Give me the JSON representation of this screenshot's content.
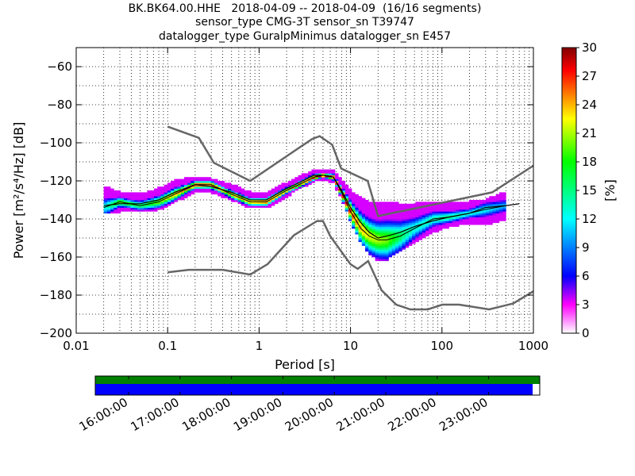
{
  "title": {
    "line1": "BK.BK64.00.HHE   2018-04-09 -- 2018-04-09  (16/16 segments)",
    "line2": "sensor_type CMG-3T sensor_sn T39747",
    "line3": "datalogger_type GuralpMinimus datalogger_sn E457"
  },
  "chart_data": [
    {
      "type": "heatmap",
      "xlabel": "Period [s]",
      "ylabel": "Power [m²/s⁴/Hz] [dB]",
      "x_scale": "log",
      "xlim": [
        0.01,
        1000
      ],
      "ylim": [
        -200,
        -50
      ],
      "grid": true,
      "x_ticks": [
        0.01,
        0.1,
        1,
        10,
        100,
        1000
      ],
      "x_tick_labels": [
        "0.01",
        "0.1",
        "1",
        "10",
        "100",
        "1000"
      ],
      "y_ticks": [
        -200,
        -180,
        -160,
        -140,
        -120,
        -100,
        -80,
        -60
      ],
      "y_tick_labels": [
        "−200",
        "−180",
        "−160",
        "−140",
        "−120",
        "−100",
        "−80",
        "−60"
      ],
      "colorbar": {
        "label": "[%]",
        "range": [
          0,
          30
        ],
        "ticks": [
          0,
          3,
          6,
          9,
          12,
          15,
          18,
          21,
          24,
          27,
          30
        ],
        "tick_labels": [
          "0",
          "3",
          "6",
          "9",
          "12",
          "15",
          "18",
          "21",
          "24",
          "27",
          "30"
        ],
        "colors": [
          "#ffffff",
          "#ff00ff",
          "#0000ff",
          "#00ffff",
          "#00ff00",
          "#ffff00",
          "#ff0000",
          "#800000"
        ]
      },
      "mode_curve": {
        "period": [
          0.02,
          0.03,
          0.05,
          0.08,
          0.12,
          0.2,
          0.3,
          0.5,
          0.8,
          1.2,
          2,
          3,
          4,
          5,
          6.5,
          8,
          10,
          13,
          16,
          20,
          25,
          35,
          50,
          80,
          120,
          200,
          300,
          500,
          700
        ],
        "power": [
          -134,
          -131,
          -133,
          -131,
          -127,
          -122,
          -122,
          -127,
          -131,
          -131,
          -125,
          -121,
          -118,
          -117,
          -118,
          -126,
          -136,
          -145,
          -149,
          -151,
          -151,
          -149,
          -145,
          -140,
          -139,
          -137,
          -135,
          -133,
          -132
        ]
      },
      "mean_curve": {
        "period": [
          0.02,
          0.03,
          0.05,
          0.08,
          0.12,
          0.2,
          0.3,
          0.5,
          0.8,
          1.2,
          2,
          3,
          4,
          5,
          6.5,
          8,
          10,
          13,
          16,
          20,
          25,
          35,
          50,
          80,
          120,
          200,
          300,
          500,
          700
        ],
        "power": [
          -133,
          -132,
          -132,
          -130,
          -126,
          -122,
          -123,
          -126,
          -130,
          -130,
          -124,
          -120,
          -117,
          -117,
          -118,
          -125,
          -134,
          -142,
          -147,
          -150,
          -149,
          -147,
          -144,
          -141,
          -139,
          -137,
          -134,
          -133,
          -132
        ]
      },
      "nlnm": {
        "period": [
          0.1,
          0.17,
          0.4,
          0.8,
          1.24,
          2.4,
          4.3,
          5,
          6,
          10,
          12,
          15.6,
          21.9,
          31.6,
          45,
          70,
          101,
          154,
          328,
          600,
          1000
        ],
        "power": [
          -168,
          -166.7,
          -166.7,
          -169.2,
          -163.7,
          -148.6,
          -141.1,
          -141.1,
          -149,
          -163.8,
          -166.2,
          -162.1,
          -177.5,
          -185,
          -187.5,
          -187.5,
          -185,
          -185,
          -187.5,
          -184.4,
          -178
        ]
      },
      "nhnm": {
        "period": [
          0.1,
          0.22,
          0.32,
          0.8,
          3.8,
          4.6,
          6.3,
          7.9,
          15.4,
          20,
          354.8,
          1000
        ],
        "power": [
          -91.5,
          -97.4,
          -110.5,
          -120,
          -98,
          -96.5,
          -101,
          -113.5,
          -120,
          -138.5,
          -126,
          -112
        ]
      },
      "psd_band": {
        "period": [
          0.02,
          0.03,
          0.05,
          0.08,
          0.12,
          0.2,
          0.3,
          0.5,
          0.8,
          1.2,
          2,
          3,
          4,
          5,
          6.5,
          8,
          10,
          13,
          16,
          20,
          25,
          35,
          50,
          80,
          120,
          200,
          300,
          500
        ],
        "upper": [
          -124,
          -127,
          -128,
          -125,
          -121,
          -119,
          -120,
          -123,
          -127,
          -127,
          -122,
          -118,
          -115,
          -115,
          -116,
          -121,
          -126,
          -130,
          -132,
          -133,
          -132,
          -133,
          -133,
          -132,
          -133,
          -132,
          -131,
          -127
        ],
        "lower": [
          -137,
          -136,
          -136,
          -135,
          -131,
          -126,
          -126,
          -130,
          -134,
          -134,
          -128,
          -123,
          -120,
          -119,
          -121,
          -129,
          -141,
          -152,
          -158,
          -162,
          -161,
          -157,
          -152,
          -147,
          -144,
          -142,
          -143,
          -140
        ],
        "peak_pct": [
          12,
          20,
          16,
          20,
          24,
          27,
          26,
          24,
          24,
          26,
          24,
          26,
          28,
          30,
          28,
          28,
          27,
          24,
          22,
          21,
          20,
          16,
          13,
          14,
          15,
          13,
          12,
          10
        ]
      }
    },
    {
      "type": "timeline",
      "time_labels": [
        "16:00:00",
        "17:00:00",
        "18:00:00",
        "19:00:00",
        "20:00:00",
        "21:00:00",
        "22:00:00",
        "23:00:00"
      ],
      "data_available_color": "#008000",
      "psd_coverage_color": "#0000ff",
      "coverage_fraction": 0.984
    }
  ]
}
